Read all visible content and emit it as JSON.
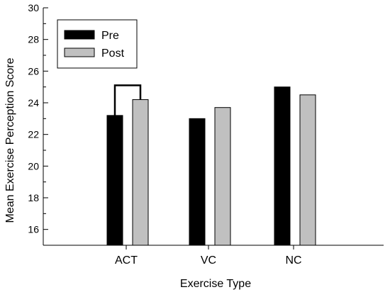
{
  "chart_data": {
    "type": "bar",
    "title": "",
    "xlabel": "Exercise Type",
    "ylabel": "Mean Exercise Perception Score",
    "categories": [
      "ACT",
      "VC",
      "NC"
    ],
    "series": [
      {
        "name": "Pre",
        "values": [
          23.2,
          23.0,
          25.0
        ],
        "color": "#000000"
      },
      {
        "name": "Post",
        "values": [
          24.2,
          23.7,
          24.5
        ],
        "color": "#c0c0c0"
      }
    ],
    "ylim": [
      15,
      30
    ],
    "yticks": [
      "16",
      "18",
      "20",
      "22",
      "24",
      "26",
      "28",
      "30"
    ],
    "grid": false,
    "legend_position": "top-left",
    "annotations": [
      {
        "type": "significance-bracket",
        "category": "ACT",
        "y": 25.1
      }
    ]
  }
}
